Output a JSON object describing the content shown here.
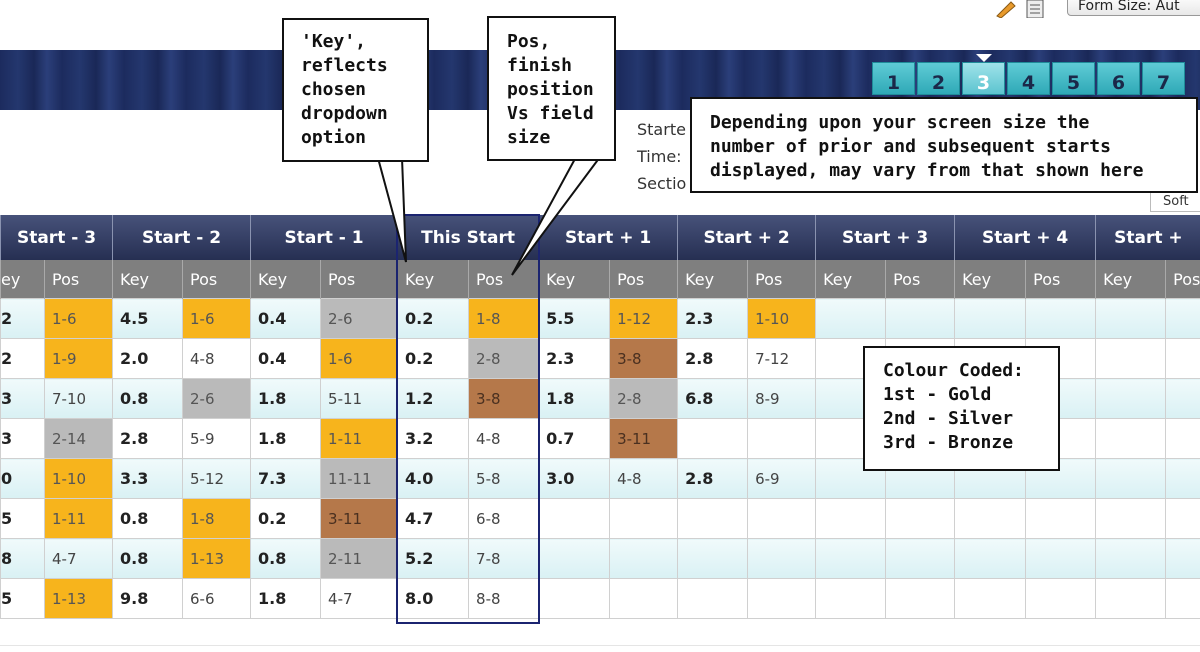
{
  "toolbar": {
    "form_size": "Form Size: Aut"
  },
  "tabs": [
    "1",
    "2",
    "3",
    "4",
    "5",
    "6",
    "7"
  ],
  "race_info": [
    "Starte",
    "Time:",
    "Sectio"
  ],
  "going": "Soft",
  "table": {
    "headers": [
      "Start - 3",
      "Start - 2",
      "Start - 1",
      "This Start",
      "Start + 1",
      "Start + 2",
      "Start + 3",
      "Start + 4",
      "Start +"
    ],
    "subheaders": [
      "ey",
      "Pos",
      "Key",
      "Pos",
      "Key",
      "Pos",
      "Key",
      "Pos",
      "Key",
      "Pos",
      "Key",
      "Pos",
      "Key",
      "Pos",
      "Key",
      "Pos",
      "Key",
      "Pos"
    ],
    "rows": [
      [
        "2",
        "1-6",
        "4.5",
        "1-6",
        "0.4",
        "2-6",
        "0.2",
        "1-8",
        "5.5",
        "1-12",
        "2.3",
        "1-10",
        null,
        null,
        null,
        null,
        null,
        null
      ],
      [
        "2",
        "1-9",
        "2.0",
        "4-8",
        "0.4",
        "1-6",
        "0.2",
        "2-8",
        "2.3",
        "3-8",
        "2.8",
        "7-12",
        null,
        null,
        null,
        null,
        null,
        null
      ],
      [
        "3",
        "7-10",
        "0.8",
        "2-6",
        "1.8",
        "5-11",
        "1.2",
        "3-8",
        "1.8",
        "2-8",
        "6.8",
        "8-9",
        null,
        null,
        null,
        null,
        null,
        null
      ],
      [
        "3",
        "2-14",
        "2.8",
        "5-9",
        "1.8",
        "1-11",
        "3.2",
        "4-8",
        "0.7",
        "3-11",
        null,
        null,
        null,
        null,
        null,
        null,
        null,
        null
      ],
      [
        "0",
        "1-10",
        "3.3",
        "5-12",
        "7.3",
        "11-11",
        "4.0",
        "5-8",
        "3.0",
        "4-8",
        "2.8",
        "6-9",
        null,
        null,
        null,
        null,
        null,
        null
      ],
      [
        "5",
        "1-11",
        "0.8",
        "1-8",
        "0.2",
        "3-11",
        "4.7",
        "6-8",
        null,
        null,
        null,
        null,
        null,
        null,
        null,
        null,
        null,
        null
      ],
      [
        "8",
        "4-7",
        "0.8",
        "1-13",
        "0.8",
        "2-11",
        "5.2",
        "7-8",
        null,
        null,
        null,
        null,
        null,
        null,
        null,
        null,
        null,
        null
      ],
      [
        "5",
        "1-13",
        "9.8",
        "6-6",
        "1.8",
        "4-7",
        "8.0",
        "8-8",
        null,
        null,
        null,
        null,
        null,
        null,
        null,
        null,
        null,
        null
      ]
    ]
  },
  "callouts": {
    "key": [
      "'Key',",
      "reflects",
      "chosen",
      "dropdown",
      "option"
    ],
    "pos": [
      "Pos,",
      "finish",
      "position",
      "Vs field",
      "size"
    ],
    "screen": [
      "Depending upon your screen size the",
      "number of prior and subsequent starts",
      "displayed, may vary from that shown here"
    ],
    "colour": [
      "Colour Coded:",
      "1st - Gold",
      "2nd - Silver",
      "3rd - Bronze"
    ]
  }
}
